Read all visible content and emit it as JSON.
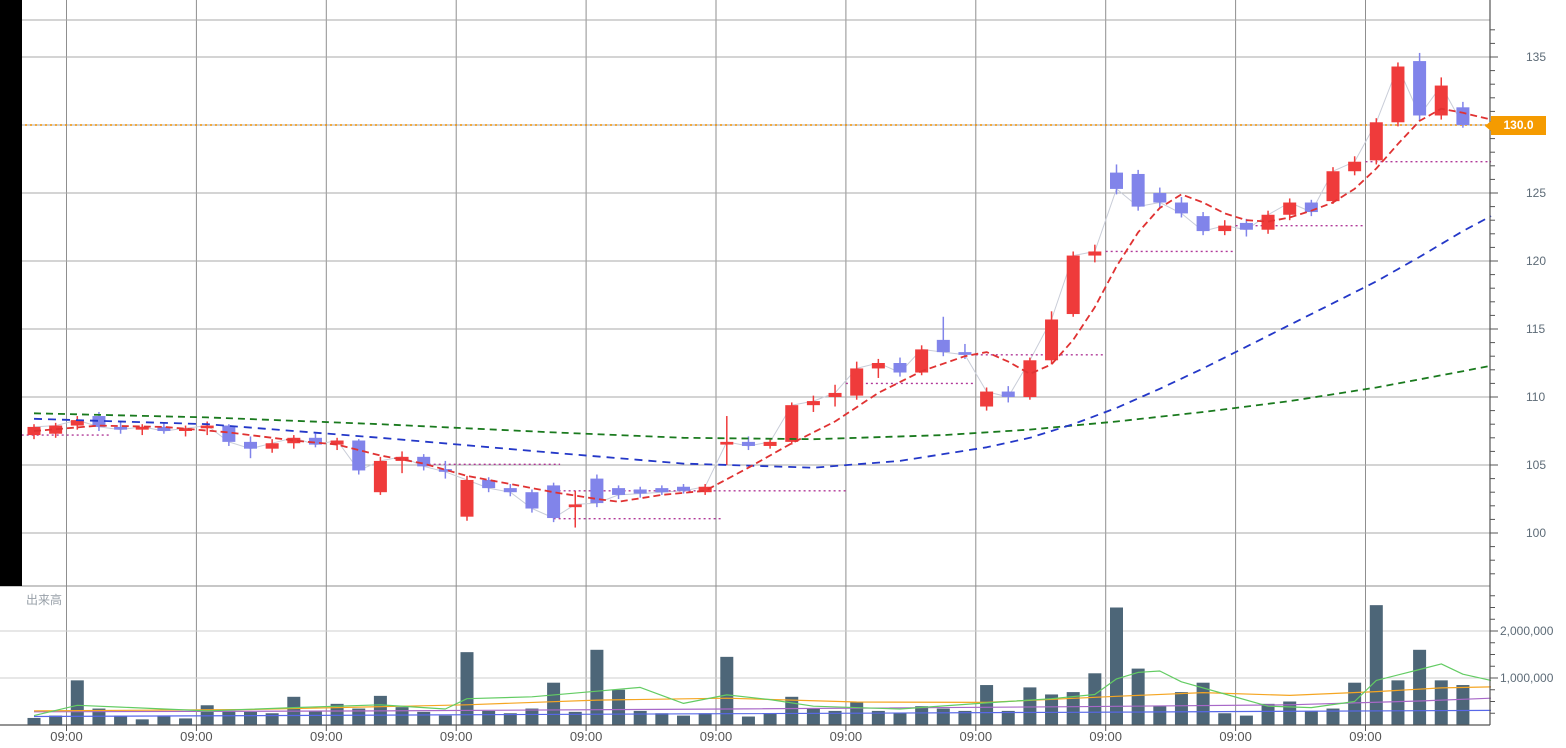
{
  "chart": {
    "volume_label": "出来高",
    "last_price_label": "130.0",
    "colors": {
      "up_candle": "#ef3b3b",
      "down_candle": "#8184ea",
      "ma_short": "#e03232",
      "ma_mid": "#2438c8",
      "ma_long": "#1a7a1e",
      "level_line": "#b03898",
      "last_price_line": "#ef8e00",
      "last_price_badge": "#f59b00",
      "volume_bar": "#4d6678",
      "vol_ma_fast": "#63cc63",
      "vol_ma_mid": "#f5a623",
      "vol_ma_slow": "#a868c8",
      "vol_ma_base": "#5868e8",
      "grid": "#a8a8a8",
      "grid_day": "#8f8f8f",
      "grid_volume": "#cfcfcf",
      "axis": "#555555",
      "axis_text": "#5d6b77",
      "time_text": "#555555",
      "connector": "#c9cdd8"
    }
  },
  "chart_data": {
    "type": "candlestick",
    "title": "",
    "x_labels": [
      "09:00",
      "09:00",
      "09:00",
      "09:00",
      "09:00",
      "09:00",
      "09:00",
      "09:00",
      "09:00",
      "09:00",
      "09:00"
    ],
    "price_grid": [
      100,
      105,
      110,
      115,
      120,
      125,
      130,
      135
    ],
    "price_axis_labels": [
      [
        100,
        "100"
      ],
      [
        105,
        "105"
      ],
      [
        110,
        "110"
      ],
      [
        115,
        "115"
      ],
      [
        120,
        "120"
      ],
      [
        125,
        "125"
      ],
      [
        135,
        "135"
      ]
    ],
    "volume_ticks": [
      [
        1000,
        "1,000,000"
      ],
      [
        2000,
        "2,000,000"
      ]
    ],
    "last_price": 130.0,
    "candles": [
      [
        107.2,
        108.0,
        106.9,
        107.8
      ],
      [
        107.3,
        108.1,
        107.0,
        107.9
      ],
      [
        107.9,
        108.6,
        107.6,
        108.3
      ],
      [
        108.6,
        108.9,
        107.5,
        107.8
      ],
      [
        107.8,
        108.2,
        107.3,
        107.6
      ],
      [
        107.6,
        108.0,
        107.2,
        107.8
      ],
      [
        107.8,
        108.1,
        107.3,
        107.5
      ],
      [
        107.5,
        107.9,
        107.1,
        107.7
      ],
      [
        107.7,
        108.2,
        107.2,
        107.9
      ],
      [
        107.9,
        108.0,
        106.4,
        106.7
      ],
      [
        106.7,
        107.1,
        105.5,
        106.2
      ],
      [
        106.2,
        106.9,
        105.9,
        106.6
      ],
      [
        106.6,
        107.2,
        106.2,
        107.0
      ],
      [
        107.0,
        107.3,
        106.3,
        106.5
      ],
      [
        106.5,
        107.0,
        106.1,
        106.8
      ],
      [
        106.8,
        106.9,
        104.3,
        104.6
      ],
      [
        103.0,
        105.6,
        102.8,
        105.3
      ],
      [
        105.3,
        106.0,
        104.4,
        105.6
      ],
      [
        105.6,
        105.8,
        104.6,
        104.9
      ],
      [
        104.7,
        105.3,
        104.0,
        104.5
      ],
      [
        101.2,
        104.2,
        100.9,
        103.9
      ],
      [
        103.9,
        104.1,
        103.0,
        103.3
      ],
      [
        103.3,
        103.6,
        102.7,
        103.0
      ],
      [
        103.0,
        103.2,
        101.5,
        101.8
      ],
      [
        103.5,
        103.7,
        100.8,
        101.1
      ],
      [
        101.9,
        103.1,
        100.4,
        102.1
      ],
      [
        104.0,
        104.3,
        101.9,
        102.2
      ],
      [
        103.3,
        103.5,
        102.5,
        102.8
      ],
      [
        103.2,
        103.4,
        102.6,
        102.9
      ],
      [
        103.3,
        103.5,
        102.8,
        103.0
      ],
      [
        103.4,
        103.6,
        102.9,
        103.1
      ],
      [
        103.0,
        103.6,
        102.8,
        103.4
      ],
      [
        106.5,
        108.6,
        105.0,
        106.7
      ],
      [
        106.7,
        107.1,
        106.1,
        106.4
      ],
      [
        106.4,
        106.9,
        106.2,
        106.7
      ],
      [
        106.7,
        109.6,
        106.5,
        109.4
      ],
      [
        109.4,
        110.1,
        108.9,
        109.7
      ],
      [
        110.0,
        110.9,
        109.3,
        110.3
      ],
      [
        110.1,
        112.6,
        109.8,
        112.1
      ],
      [
        112.1,
        112.8,
        111.4,
        112.5
      ],
      [
        112.5,
        112.9,
        111.5,
        111.8
      ],
      [
        111.8,
        113.8,
        111.6,
        113.5
      ],
      [
        114.2,
        115.9,
        113.0,
        113.3
      ],
      [
        113.3,
        113.9,
        112.8,
        113.1
      ],
      [
        109.3,
        110.7,
        109.0,
        110.4
      ],
      [
        110.4,
        110.8,
        109.6,
        110.0
      ],
      [
        110.0,
        112.9,
        109.8,
        112.7
      ],
      [
        112.7,
        116.3,
        112.4,
        115.7
      ],
      [
        116.1,
        120.7,
        115.9,
        120.4
      ],
      [
        120.4,
        121.2,
        119.9,
        120.7
      ],
      [
        126.5,
        127.1,
        124.9,
        125.3
      ],
      [
        126.4,
        126.7,
        123.7,
        124.0
      ],
      [
        125.0,
        125.4,
        123.9,
        124.3
      ],
      [
        124.3,
        124.7,
        123.2,
        123.5
      ],
      [
        123.3,
        123.6,
        121.9,
        122.2
      ],
      [
        122.2,
        123.0,
        121.9,
        122.6
      ],
      [
        122.8,
        123.1,
        121.8,
        122.3
      ],
      [
        122.3,
        123.7,
        122.0,
        123.4
      ],
      [
        123.4,
        124.6,
        123.0,
        124.3
      ],
      [
        124.3,
        124.5,
        123.3,
        123.6
      ],
      [
        124.4,
        126.9,
        124.2,
        126.6
      ],
      [
        126.6,
        127.7,
        126.3,
        127.3
      ],
      [
        127.4,
        130.5,
        127.1,
        130.2
      ],
      [
        130.2,
        134.6,
        129.9,
        134.3
      ],
      [
        134.7,
        135.3,
        130.3,
        130.7
      ],
      [
        130.7,
        133.5,
        130.4,
        132.9
      ],
      [
        131.3,
        131.7,
        129.8,
        130.0
      ]
    ],
    "volumes_k": [
      150,
      200,
      950,
      350,
      200,
      120,
      180,
      140,
      420,
      300,
      280,
      250,
      600,
      300,
      450,
      350,
      620,
      380,
      280,
      200,
      1550,
      300,
      250,
      350,
      900,
      280,
      1600,
      750,
      300,
      250,
      200,
      250,
      1450,
      180,
      250,
      600,
      350,
      300,
      500,
      300,
      250,
      400,
      350,
      300,
      850,
      300,
      800,
      650,
      700,
      1100,
      2500,
      1200,
      400,
      700,
      900,
      250,
      200,
      450,
      500,
      300,
      350,
      900,
      2550,
      950,
      1600,
      950,
      850
    ],
    "ma_short": [
      [
        0,
        107.5
      ],
      [
        3,
        107.9
      ],
      [
        6,
        107.8
      ],
      [
        9,
        107.4
      ],
      [
        12,
        106.8
      ],
      [
        14,
        106.5
      ],
      [
        16,
        105.7
      ],
      [
        18,
        105.1
      ],
      [
        20,
        104.2
      ],
      [
        22,
        103.6
      ],
      [
        24,
        103.0
      ],
      [
        26,
        102.5
      ],
      [
        27,
        102.3
      ],
      [
        29,
        102.8
      ],
      [
        31,
        103.1
      ],
      [
        33,
        104.8
      ],
      [
        35,
        106.6
      ],
      [
        37,
        108.2
      ],
      [
        39,
        110.3
      ],
      [
        41,
        111.9
      ],
      [
        43,
        113.0
      ],
      [
        44,
        113.3
      ],
      [
        45,
        112.6
      ],
      [
        46,
        111.7
      ],
      [
        47,
        112.4
      ],
      [
        48,
        114.2
      ],
      [
        49,
        116.6
      ],
      [
        50,
        119.6
      ],
      [
        51,
        122.1
      ],
      [
        52,
        123.9
      ],
      [
        53,
        124.9
      ],
      [
        54,
        124.3
      ],
      [
        55,
        123.5
      ],
      [
        56,
        123.0
      ],
      [
        57,
        122.9
      ],
      [
        58,
        123.2
      ],
      [
        59,
        123.7
      ],
      [
        60,
        124.3
      ],
      [
        61,
        125.3
      ],
      [
        62,
        126.8
      ],
      [
        63,
        128.6
      ],
      [
        64,
        130.3
      ],
      [
        65,
        131.2
      ],
      [
        66,
        130.9
      ],
      [
        67.3,
        130.4
      ]
    ],
    "ma_mid": [
      [
        0,
        108.4
      ],
      [
        8,
        108.0
      ],
      [
        16,
        107.0
      ],
      [
        24,
        105.9
      ],
      [
        30,
        105.1
      ],
      [
        36,
        104.8
      ],
      [
        40,
        105.3
      ],
      [
        44,
        106.3
      ],
      [
        46,
        107.0
      ],
      [
        48,
        108.0
      ],
      [
        50,
        109.2
      ],
      [
        52,
        110.6
      ],
      [
        54,
        112.1
      ],
      [
        56,
        113.7
      ],
      [
        58,
        115.3
      ],
      [
        60,
        116.9
      ],
      [
        62,
        118.5
      ],
      [
        64,
        120.3
      ],
      [
        66,
        122.2
      ],
      [
        67.3,
        123.3
      ]
    ],
    "ma_long": [
      [
        0,
        108.8
      ],
      [
        8,
        108.5
      ],
      [
        16,
        108.0
      ],
      [
        24,
        107.4
      ],
      [
        30,
        107.0
      ],
      [
        36,
        106.9
      ],
      [
        42,
        107.2
      ],
      [
        46,
        107.6
      ],
      [
        50,
        108.2
      ],
      [
        54,
        108.9
      ],
      [
        58,
        109.7
      ],
      [
        62,
        110.7
      ],
      [
        66,
        111.9
      ],
      [
        67.3,
        112.3
      ]
    ],
    "levels": [
      [
        -0.8,
        3.5,
        107.2
      ],
      [
        18.0,
        24.3,
        105.05
      ],
      [
        24.0,
        37.5,
        103.1
      ],
      [
        24.0,
        31.8,
        101.05
      ],
      [
        37.5,
        43.5,
        111.0
      ],
      [
        43.5,
        49.5,
        113.1
      ],
      [
        49.5,
        55.5,
        120.7
      ],
      [
        55.5,
        61.5,
        122.6
      ],
      [
        61.5,
        67.3,
        127.3
      ]
    ],
    "vol_ma_fast": [
      [
        0,
        200
      ],
      [
        2,
        420
      ],
      [
        4,
        380
      ],
      [
        8,
        300
      ],
      [
        12,
        370
      ],
      [
        16,
        430
      ],
      [
        19,
        340
      ],
      [
        20,
        560
      ],
      [
        23,
        600
      ],
      [
        26,
        720
      ],
      [
        28,
        800
      ],
      [
        30,
        460
      ],
      [
        32,
        640
      ],
      [
        34,
        540
      ],
      [
        36,
        400
      ],
      [
        40,
        340
      ],
      [
        44,
        470
      ],
      [
        47,
        560
      ],
      [
        49,
        650
      ],
      [
        50,
        980
      ],
      [
        51,
        1120
      ],
      [
        52,
        1150
      ],
      [
        53,
        920
      ],
      [
        55,
        660
      ],
      [
        57,
        400
      ],
      [
        59,
        370
      ],
      [
        61,
        500
      ],
      [
        62,
        950
      ],
      [
        64,
        1180
      ],
      [
        65,
        1300
      ],
      [
        66,
        1080
      ],
      [
        67.3,
        950
      ]
    ],
    "vol_ma_mid": [
      [
        0,
        300
      ],
      [
        10,
        330
      ],
      [
        20,
        430
      ],
      [
        26,
        530
      ],
      [
        32,
        570
      ],
      [
        38,
        490
      ],
      [
        44,
        480
      ],
      [
        50,
        610
      ],
      [
        54,
        690
      ],
      [
        58,
        630
      ],
      [
        62,
        710
      ],
      [
        65,
        790
      ],
      [
        67.3,
        810
      ]
    ],
    "vol_ma_slow": [
      [
        0,
        280
      ],
      [
        16,
        300
      ],
      [
        32,
        340
      ],
      [
        48,
        390
      ],
      [
        58,
        430
      ],
      [
        64,
        510
      ],
      [
        67.3,
        570
      ]
    ],
    "vol_ma_base": [
      [
        0,
        180
      ],
      [
        16,
        210
      ],
      [
        32,
        240
      ],
      [
        48,
        270
      ],
      [
        67.3,
        310
      ]
    ]
  }
}
